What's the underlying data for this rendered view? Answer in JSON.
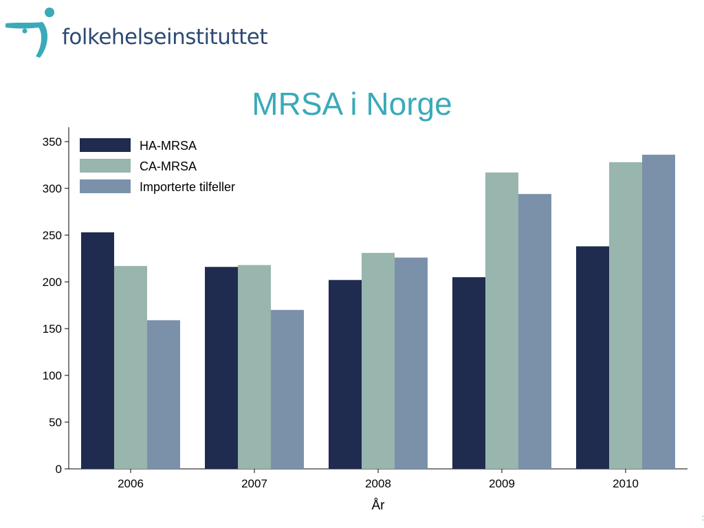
{
  "logo": {
    "text": "folkehelseinstituttet",
    "icon": "fhi-figure-icon"
  },
  "colors": {
    "title": "#3aaab8",
    "logo_text": "#2d4a72",
    "logo_icon": "#3aaab8"
  },
  "chart_data": {
    "type": "bar",
    "title": "MRSA i Norge",
    "xlabel": "År",
    "ylabel": "",
    "categories": [
      "2006",
      "2007",
      "2008",
      "2009",
      "2010"
    ],
    "ylim": [
      0,
      350
    ],
    "yticks": [
      0,
      50,
      100,
      150,
      200,
      250,
      300,
      350
    ],
    "grid": false,
    "legend_position": "top-left",
    "series": [
      {
        "name": "HA-MRSA",
        "color": "#1f2b4f",
        "values": [
          253,
          216,
          202,
          205,
          238
        ]
      },
      {
        "name": "CA-MRSA",
        "color": "#98b5ae",
        "values": [
          217,
          218,
          231,
          317,
          328
        ]
      },
      {
        "name": "Importerte tilfeller",
        "color": "#7b91aa",
        "values": [
          159,
          170,
          226,
          294,
          336
        ]
      }
    ]
  }
}
